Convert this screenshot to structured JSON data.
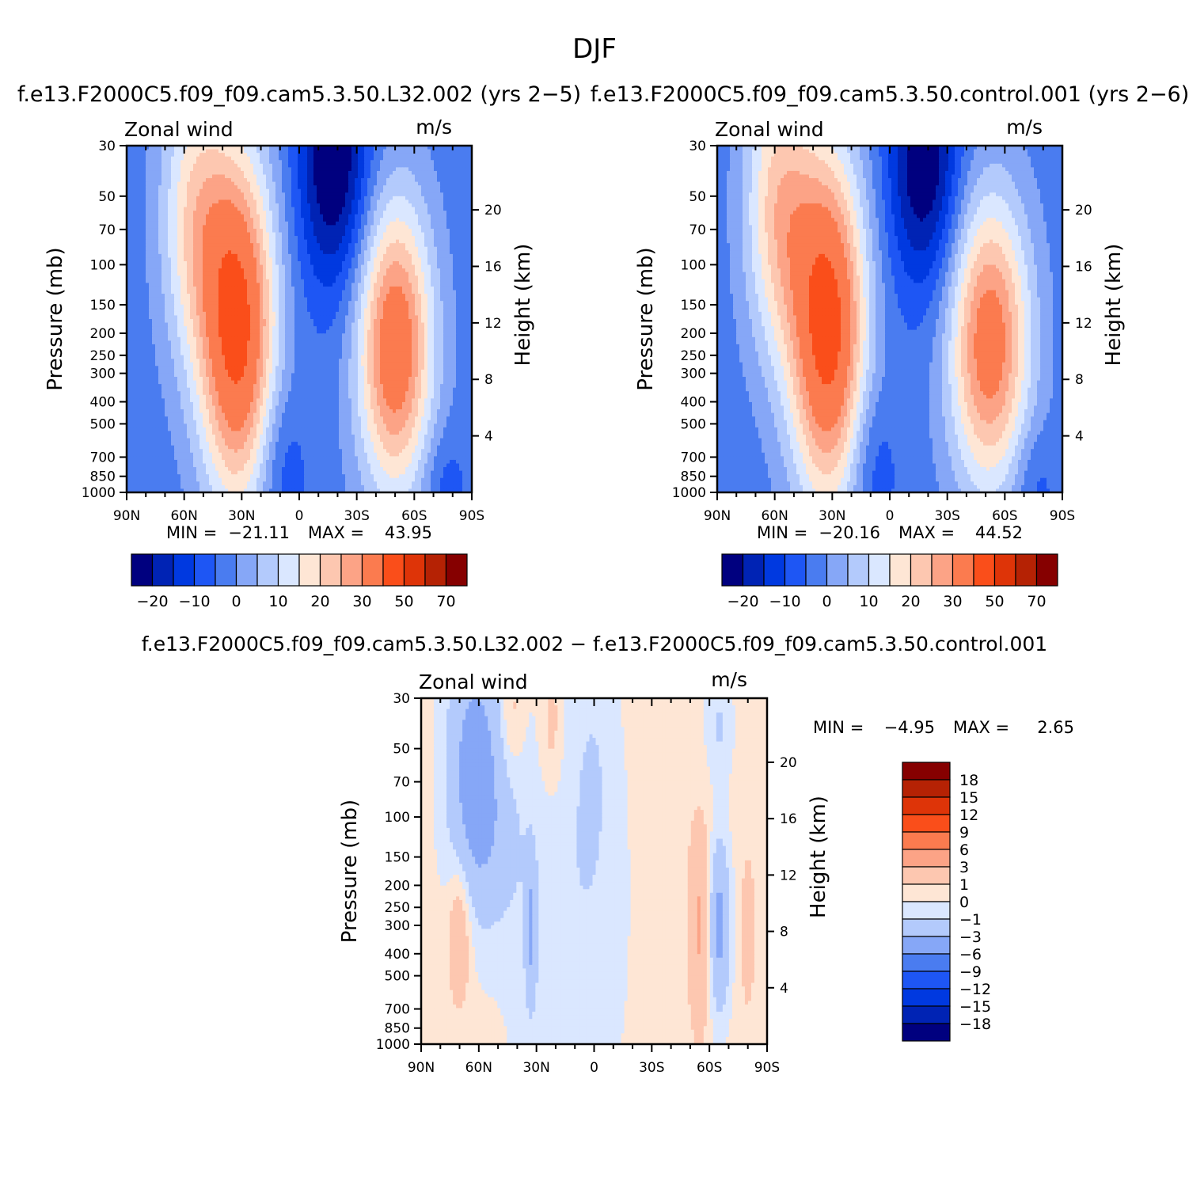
{
  "figure": {
    "title": "DJF",
    "diff_title": "f.e13.F2000C5.f09_f09.cam5.3.50.L32.002 − f.e13.F2000C5.f09_f09.cam5.3.50.control.001"
  },
  "palette": {
    "abs": [
      "#00007f",
      "#0023b4",
      "#0039e0",
      "#1e56f4",
      "#4a7cf0",
      "#86a7f7",
      "#b3cafc",
      "#dae7ff",
      "#fee6d5",
      "#fdc7b0",
      "#fca386",
      "#fb7b4f",
      "#fa4e1a",
      "#de3408",
      "#b52204",
      "#860000"
    ],
    "diff": [
      "#00007f",
      "#0023b4",
      "#0039e0",
      "#1e56f4",
      "#4a7cf0",
      "#86a7f7",
      "#b3cafc",
      "#dae7ff",
      "#fee6d5",
      "#fdc7b0",
      "#fca386",
      "#fb7b4f",
      "#fa4e1a",
      "#de3408",
      "#b52204",
      "#860000"
    ]
  },
  "chart_data": [
    {
      "id": "p1",
      "type": "heatmap",
      "case_label": "f.e13.F2000C5.f09_f09.cam5.3.50.L32.002 (yrs 2−5)",
      "variable": "Zonal wind",
      "units": "m/s",
      "ylabel": "Pressure (mb)",
      "ylabel_right": "Height (km)",
      "pressure_ticks": [
        30,
        50,
        70,
        100,
        150,
        200,
        250,
        300,
        400,
        500,
        700,
        850,
        1000
      ],
      "pressure_labels": [
        "30",
        "50",
        "70",
        "100",
        "150",
        "200",
        "250",
        "300",
        "400",
        "500",
        "700",
        "850",
        "1000"
      ],
      "height_ticks": [
        4,
        8,
        12,
        16,
        20
      ],
      "height_labels": [
        "4",
        "8",
        "12",
        "16",
        "20"
      ],
      "lat_ticks": [
        90,
        60,
        30,
        0,
        -30,
        -60,
        -90
      ],
      "lat_labels": [
        "90N",
        "60N",
        "30N",
        "0",
        "30S",
        "60S",
        "90S"
      ],
      "min_label": "MIN =",
      "min_value": "−21.11",
      "max_label": "MAX =",
      "max_value": "43.95",
      "levels": [
        -25,
        -20,
        -15,
        -10,
        -5,
        0,
        5,
        10,
        15,
        20,
        25,
        30,
        40,
        50,
        60,
        70,
        80
      ],
      "colorbar_labels": [
        "−20",
        "−10",
        "0",
        "10",
        "20",
        "30",
        "50",
        "70"
      ],
      "colorbar_label_values": [
        -20,
        -10,
        0,
        10,
        20,
        30,
        50,
        70
      ],
      "background_value": -3,
      "features": [
        {
          "lat": 32,
          "p": 190,
          "amp": 46,
          "wlat": 14,
          "wlogp": 1.25
        },
        {
          "lat": 55,
          "p": 60,
          "amp": 20,
          "wlat": 13,
          "wlogp": 1.1
        },
        {
          "lat": -50,
          "p": 230,
          "amp": 40,
          "wlat": 14,
          "wlogp": 1.05
        },
        {
          "lat": -18,
          "p": 35,
          "amp": -24,
          "wlat": 13,
          "wlogp": 0.9
        },
        {
          "lat": 10,
          "p": 750,
          "amp": -8,
          "wlat": 9,
          "wlogp": 0.6
        },
        {
          "lat": -75,
          "p": 900,
          "amp": -6,
          "wlat": 8,
          "wlogp": 0.4
        }
      ]
    },
    {
      "id": "p2",
      "type": "heatmap",
      "case_label": "f.e13.F2000C5.f09_f09.cam5.3.50.control.001 (yrs 2−6)",
      "variable": "Zonal wind",
      "units": "m/s",
      "ylabel": "Pressure (mb)",
      "ylabel_right": "Height (km)",
      "pressure_ticks": [
        30,
        50,
        70,
        100,
        150,
        200,
        250,
        300,
        400,
        500,
        700,
        850,
        1000
      ],
      "pressure_labels": [
        "30",
        "50",
        "70",
        "100",
        "150",
        "200",
        "250",
        "300",
        "400",
        "500",
        "700",
        "850",
        "1000"
      ],
      "height_ticks": [
        4,
        8,
        12,
        16,
        20
      ],
      "height_labels": [
        "4",
        "8",
        "12",
        "16",
        "20"
      ],
      "lat_ticks": [
        90,
        60,
        30,
        0,
        -30,
        -60,
        -90
      ],
      "lat_labels": [
        "90N",
        "60N",
        "30N",
        "0",
        "30S",
        "60S",
        "90S"
      ],
      "min_label": "MIN =",
      "min_value": "−20.16",
      "max_label": "MAX =",
      "max_value": "44.52",
      "levels": [
        -25,
        -20,
        -15,
        -10,
        -5,
        0,
        5,
        10,
        15,
        20,
        25,
        30,
        40,
        50,
        60,
        70,
        80
      ],
      "colorbar_labels": [
        "−20",
        "−10",
        "0",
        "10",
        "20",
        "30",
        "50",
        "70"
      ],
      "colorbar_label_values": [
        -20,
        -10,
        0,
        10,
        20,
        30,
        50,
        70
      ],
      "background_value": -3,
      "features": [
        {
          "lat": 32,
          "p": 190,
          "amp": 47,
          "wlat": 14,
          "wlogp": 1.25
        },
        {
          "lat": 58,
          "p": 55,
          "amp": 24,
          "wlat": 13,
          "wlogp": 1.1
        },
        {
          "lat": -52,
          "p": 220,
          "amp": 38,
          "wlat": 15,
          "wlogp": 1.05
        },
        {
          "lat": -18,
          "p": 35,
          "amp": -23,
          "wlat": 13,
          "wlogp": 0.9
        },
        {
          "lat": 10,
          "p": 750,
          "amp": -8,
          "wlat": 9,
          "wlogp": 0.6
        },
        {
          "lat": -75,
          "p": 900,
          "amp": -6,
          "wlat": 8,
          "wlogp": 0.4
        }
      ]
    },
    {
      "id": "p3",
      "type": "heatmap",
      "variable": "Zonal wind",
      "units": "m/s",
      "ylabel": "Pressure (mb)",
      "ylabel_right": "Height (km)",
      "pressure_ticks": [
        30,
        50,
        70,
        100,
        150,
        200,
        250,
        300,
        400,
        500,
        700,
        850,
        1000
      ],
      "pressure_labels": [
        "30",
        "50",
        "70",
        "100",
        "150",
        "200",
        "250",
        "300",
        "400",
        "500",
        "700",
        "850",
        "1000"
      ],
      "height_ticks": [
        4,
        8,
        12,
        16,
        20
      ],
      "height_labels": [
        "4",
        "8",
        "12",
        "16",
        "20"
      ],
      "lat_ticks": [
        90,
        60,
        30,
        0,
        -30,
        -60,
        -90
      ],
      "lat_labels": [
        "90N",
        "60N",
        "30N",
        "0",
        "30S",
        "60S",
        "90S"
      ],
      "min_label": "MIN =",
      "min_value": "−4.95",
      "max_label": "MAX =",
      "max_value": "2.65",
      "levels": [
        -21,
        -18,
        -15,
        -12,
        -9,
        -6,
        -3,
        -1,
        0,
        1,
        3,
        6,
        9,
        12,
        15,
        18,
        21
      ],
      "colorbar_labels": [
        "18",
        "15",
        "12",
        "9",
        "6",
        "3",
        "1",
        "0",
        "−1",
        "−3",
        "−6",
        "−9",
        "−12",
        "−15",
        "−18"
      ],
      "colorbar_label_values": [
        18,
        15,
        12,
        9,
        6,
        3,
        1,
        0,
        -1,
        -3,
        -6,
        -9,
        -12,
        -15,
        -18
      ],
      "background_value": 0.4,
      "features": [
        {
          "lat": 62,
          "p": 60,
          "amp": -4.5,
          "wlat": 10,
          "wlogp": 0.9
        },
        {
          "lat": 52,
          "p": 140,
          "amp": -1.2,
          "wlat": 12,
          "wlogp": 0.6
        },
        {
          "lat": 15,
          "p": 300,
          "amp": -1.2,
          "wlat": 22,
          "wlogp": 1.8
        },
        {
          "lat": 0,
          "p": 60,
          "amp": -0.9,
          "wlat": 8,
          "wlogp": 1.0
        },
        {
          "lat": -55,
          "p": 300,
          "amp": 3.0,
          "wlat": 4,
          "wlogp": 0.7
        },
        {
          "lat": -65,
          "p": 300,
          "amp": -4.2,
          "wlat": 4,
          "wlogp": 0.6
        },
        {
          "lat": 70,
          "p": 320,
          "amp": 2.6,
          "wlat": 4,
          "wlogp": 0.5
        },
        {
          "lat": 33,
          "p": 320,
          "amp": -3.2,
          "wlat": 2,
          "wlogp": 0.5
        },
        {
          "lat": -80,
          "p": 320,
          "amp": 1.8,
          "wlat": 2.5,
          "wlogp": 0.5
        },
        {
          "lat": 43,
          "p": 35,
          "amp": 1.5,
          "wlat": 4,
          "wlogp": 0.4
        },
        {
          "lat": 22,
          "p": 40,
          "amp": 1.5,
          "wlat": 4,
          "wlogp": 0.5
        },
        {
          "lat": -65,
          "p": 40,
          "amp": -1.5,
          "wlat": 5,
          "wlogp": 0.4
        }
      ]
    }
  ]
}
